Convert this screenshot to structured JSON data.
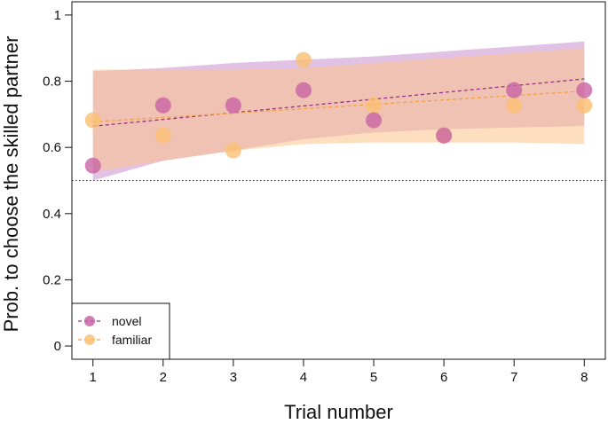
{
  "chart_data": {
    "type": "scatter",
    "xlabel": "Trial number",
    "ylabel": "Prob. to choose the skilled partner",
    "x_ticks": [
      "1",
      "2",
      "3",
      "4",
      "5",
      "6",
      "7",
      "8"
    ],
    "y_ticks": [
      "0",
      "0.2",
      "0.4",
      "0.6",
      "0.8",
      "1"
    ],
    "xlim": [
      0.7,
      8.3
    ],
    "ylim": [
      -0.04,
      1.04
    ],
    "reference_line": 0.5,
    "legend_position": "bottom-left",
    "series": [
      {
        "name": "novel",
        "color": "#c864a5",
        "band_color": "#c98fd0",
        "points": [
          [
            1,
            0.545
          ],
          [
            2,
            0.727
          ],
          [
            3,
            0.727
          ],
          [
            4,
            0.773
          ],
          [
            5,
            0.682
          ],
          [
            6,
            0.636
          ],
          [
            7,
            0.773
          ],
          [
            8,
            0.773
          ]
        ],
        "trend": [
          [
            1,
            0.664
          ],
          [
            8,
            0.807
          ]
        ],
        "band_upper": [
          [
            1,
            0.83
          ],
          [
            2,
            0.84
          ],
          [
            3,
            0.855
          ],
          [
            4,
            0.865
          ],
          [
            5,
            0.875
          ],
          [
            6,
            0.89
          ],
          [
            7,
            0.905
          ],
          [
            8,
            0.92
          ]
        ],
        "band_lower": [
          [
            1,
            0.5
          ],
          [
            2,
            0.56
          ],
          [
            3,
            0.59
          ],
          [
            4,
            0.625
          ],
          [
            5,
            0.645
          ],
          [
            6,
            0.655
          ],
          [
            7,
            0.66
          ],
          [
            8,
            0.665
          ]
        ]
      },
      {
        "name": "familiar",
        "color": "#fbbf73",
        "band_color": "#fbc38a",
        "points": [
          [
            1,
            0.682
          ],
          [
            2,
            0.636
          ],
          [
            3,
            0.591
          ],
          [
            4,
            0.864
          ],
          [
            5,
            0.727
          ],
          [
            6,
            0.636
          ],
          [
            7,
            0.727
          ],
          [
            8,
            0.727
          ]
        ],
        "trend": [
          [
            1,
            0.677
          ],
          [
            8,
            0.77
          ]
        ],
        "band_upper": [
          [
            1,
            0.835
          ],
          [
            2,
            0.835
          ],
          [
            3,
            0.835
          ],
          [
            4,
            0.84
          ],
          [
            5,
            0.855
          ],
          [
            6,
            0.87
          ],
          [
            7,
            0.885
          ],
          [
            8,
            0.9
          ]
        ],
        "band_lower": [
          [
            1,
            0.525
          ],
          [
            2,
            0.56
          ],
          [
            3,
            0.59
          ],
          [
            4,
            0.61
          ],
          [
            5,
            0.615
          ],
          [
            6,
            0.615
          ],
          [
            7,
            0.615
          ],
          [
            8,
            0.61
          ]
        ]
      }
    ]
  }
}
